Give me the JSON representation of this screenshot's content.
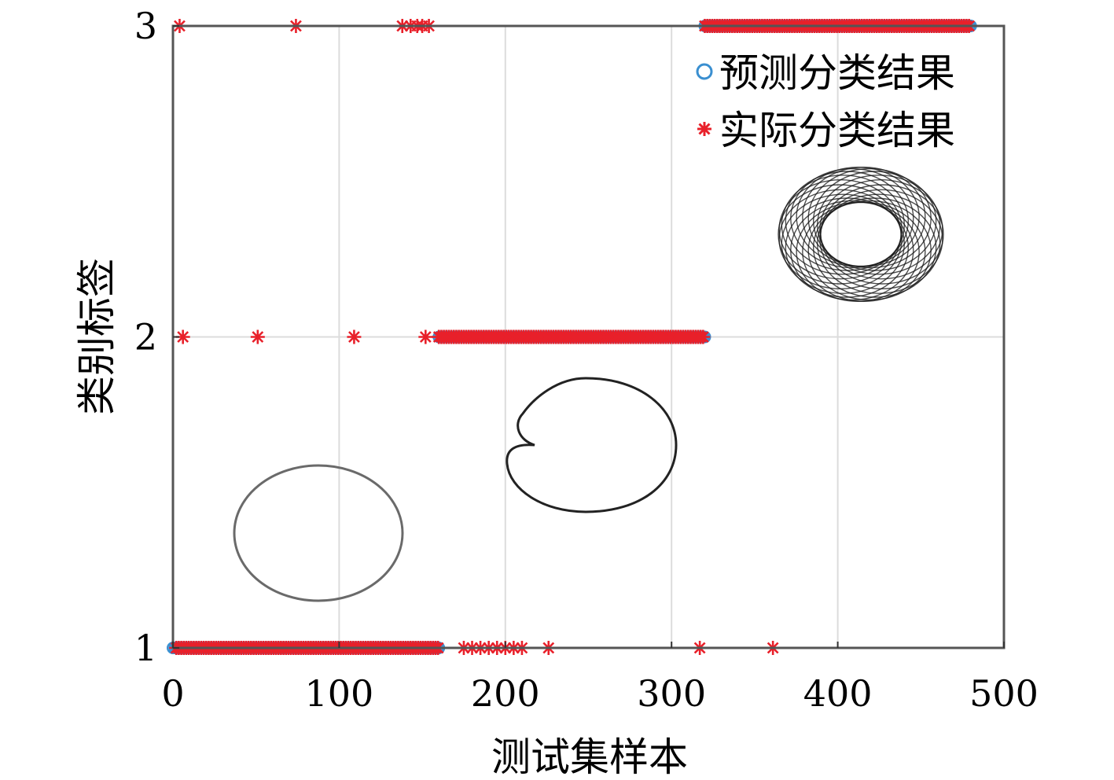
{
  "chart_data": {
    "type": "scatter",
    "xlabel": "测试集样本",
    "ylabel": "类别标签",
    "xlim": [
      0,
      500
    ],
    "ylim": [
      1,
      3
    ],
    "xticks": [
      "0",
      "100",
      "200",
      "300",
      "400",
      "500"
    ],
    "yticks": [
      "1",
      "2",
      "3"
    ],
    "grid": true,
    "legend_position": "top-right",
    "series": [
      {
        "name": "预测分类结果",
        "marker": "circle",
        "color": "#3a8fd0",
        "points": [
          {
            "x_start": 0,
            "x_end": 160,
            "y": 1
          },
          {
            "x_start": 160,
            "x_end": 320,
            "y": 2
          },
          {
            "x_start": 320,
            "x_end": 480,
            "y": 3
          }
        ]
      },
      {
        "name": "实际分类结果",
        "marker": "asterisk",
        "color": "#e8202a",
        "dense_ranges": [
          {
            "x_start": 2,
            "x_end": 160,
            "y": 1
          },
          {
            "x_start": 160,
            "x_end": 320,
            "y": 2
          },
          {
            "x_start": 320,
            "x_end": 480,
            "y": 3
          }
        ],
        "outliers": [
          {
            "x": 175,
            "y": 1
          },
          {
            "x": 180,
            "y": 1
          },
          {
            "x": 185,
            "y": 1
          },
          {
            "x": 190,
            "y": 1
          },
          {
            "x": 195,
            "y": 1
          },
          {
            "x": 200,
            "y": 1
          },
          {
            "x": 205,
            "y": 1
          },
          {
            "x": 210,
            "y": 1
          },
          {
            "x": 226,
            "y": 1
          },
          {
            "x": 317,
            "y": 1
          },
          {
            "x": 361,
            "y": 1
          },
          {
            "x": 6,
            "y": 2
          },
          {
            "x": 51,
            "y": 2
          },
          {
            "x": 109,
            "y": 2
          },
          {
            "x": 152,
            "y": 2
          },
          {
            "x": 4,
            "y": 3
          },
          {
            "x": 74,
            "y": 3
          },
          {
            "x": 138,
            "y": 3
          },
          {
            "x": 143,
            "y": 3
          },
          {
            "x": 147,
            "y": 3
          },
          {
            "x": 150,
            "y": 3
          },
          {
            "x": 154,
            "y": 3
          }
        ]
      }
    ],
    "insets": [
      {
        "shape": "circle",
        "label_class": 1
      },
      {
        "shape": "cardioid",
        "label_class": 2
      },
      {
        "shape": "torus",
        "label_class": 3
      }
    ]
  }
}
